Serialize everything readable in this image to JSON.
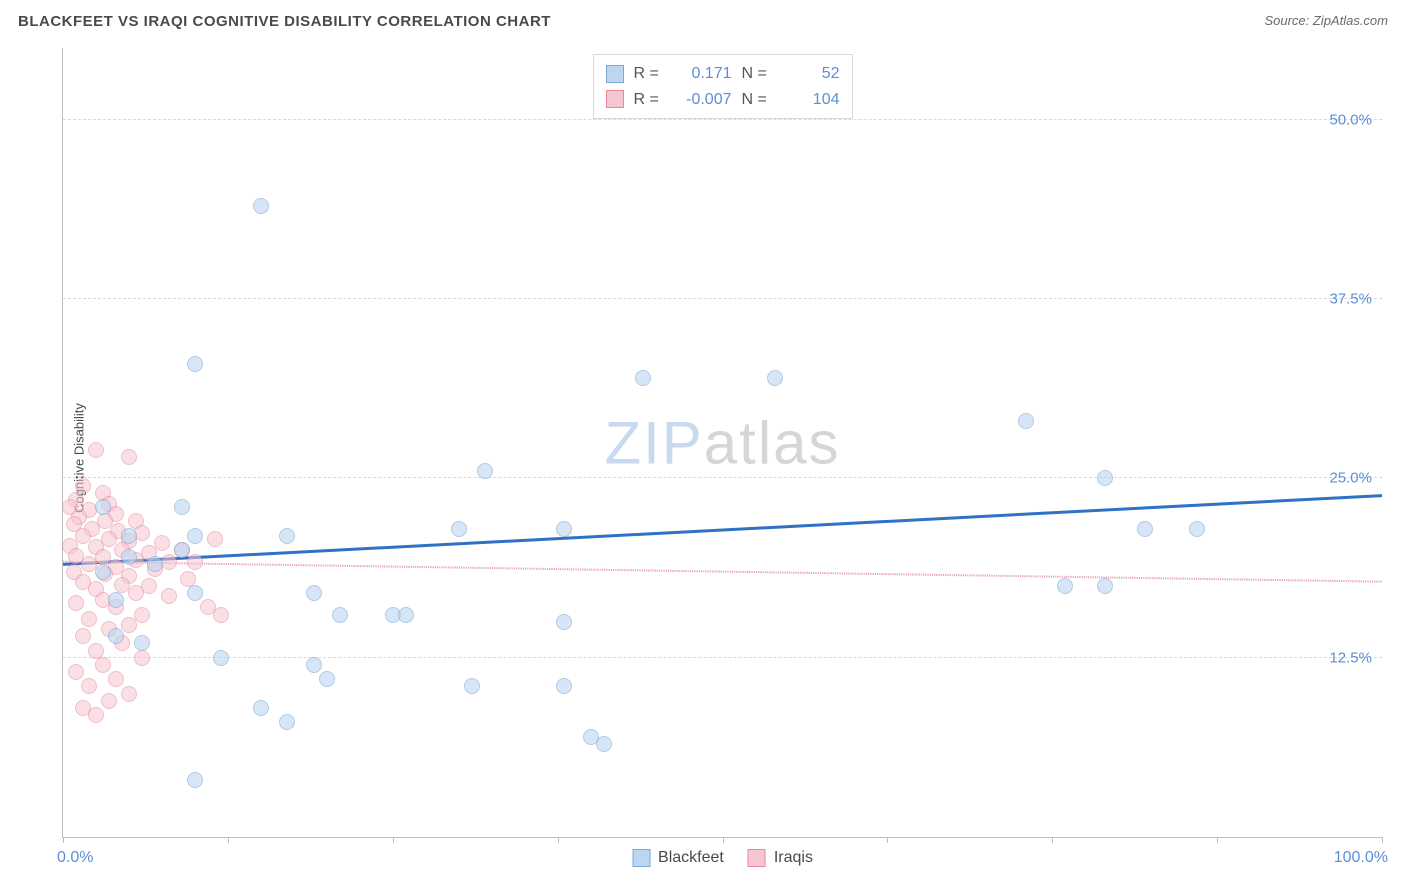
{
  "title": "BLACKFEET VS IRAQI COGNITIVE DISABILITY CORRELATION CHART",
  "source_prefix": "Source: ",
  "source_name": "ZipAtlas.com",
  "y_axis_label": "Cognitive Disability",
  "watermark_zip": "ZIP",
  "watermark_atlas": "atlas",
  "chart": {
    "type": "scatter",
    "xlim": [
      0,
      100
    ],
    "ylim": [
      0,
      55
    ],
    "y_ticks": [
      12.5,
      25.0,
      37.5,
      50.0
    ],
    "y_tick_labels": [
      "12.5%",
      "25.0%",
      "37.5%",
      "50.0%"
    ],
    "x_ticks": [
      0,
      12.5,
      25,
      37.5,
      50,
      62.5,
      75,
      87.5,
      100
    ],
    "x_left_label": "0.0%",
    "x_right_label": "100.0%",
    "grid_color": "#d9d9d9",
    "axis_color": "#bfbfbf",
    "background_color": "#ffffff",
    "marker_radius": 8,
    "marker_stroke_width": 1,
    "tick_label_color": "#5a8fd6",
    "axis_label_color": "#4a4a4a",
    "label_fontsize": 13,
    "tick_fontsize": 15
  },
  "series": [
    {
      "key": "blackfeet",
      "label": "Blackfeet",
      "fill": "#bcd6f2",
      "stroke": "#7fa8d6",
      "fill_opacity": 0.6,
      "R": "0.171",
      "N": "52",
      "trend": {
        "y_at_x0": 19.0,
        "y_at_x100": 23.8,
        "stroke": "#2f72c4",
        "width": 3,
        "dash": "none"
      },
      "points": [
        [
          15,
          44
        ],
        [
          10,
          33
        ],
        [
          44,
          32
        ],
        [
          54,
          32
        ],
        [
          73,
          29
        ],
        [
          32,
          25.5
        ],
        [
          79,
          25
        ],
        [
          38,
          21.5
        ],
        [
          30,
          21.5
        ],
        [
          82,
          21.5
        ],
        [
          86,
          21.5
        ],
        [
          3,
          23
        ],
        [
          9,
          23
        ],
        [
          5,
          21
        ],
        [
          10,
          21
        ],
        [
          17,
          21
        ],
        [
          9,
          20
        ],
        [
          5,
          19.5
        ],
        [
          7,
          19
        ],
        [
          3,
          18.5
        ],
        [
          19,
          17
        ],
        [
          76,
          17.5
        ],
        [
          79,
          17.5
        ],
        [
          10,
          17
        ],
        [
          4,
          16.5
        ],
        [
          21,
          15.5
        ],
        [
          25,
          15.5
        ],
        [
          26,
          15.5
        ],
        [
          38,
          15
        ],
        [
          4,
          14
        ],
        [
          6,
          13.5
        ],
        [
          12,
          12.5
        ],
        [
          19,
          12
        ],
        [
          20,
          11
        ],
        [
          31,
          10.5
        ],
        [
          38,
          10.5
        ],
        [
          15,
          9
        ],
        [
          17,
          8
        ],
        [
          40,
          7
        ],
        [
          41,
          6.5
        ],
        [
          10,
          4
        ]
      ]
    },
    {
      "key": "iraqis",
      "label": "Iraqis",
      "fill": "#f6c5d1",
      "stroke": "#e68aa2",
      "fill_opacity": 0.55,
      "R": "-0.007",
      "N": "104",
      "trend": {
        "y_at_x0": 19.2,
        "y_at_x100": 17.8,
        "stroke": "#e9a3b4",
        "width": 2,
        "dash": "6,5"
      },
      "points": [
        [
          2.5,
          27
        ],
        [
          5,
          26.5
        ],
        [
          1.5,
          24.5
        ],
        [
          3,
          24
        ],
        [
          1,
          23.5
        ],
        [
          3.5,
          23.2
        ],
        [
          0.5,
          23
        ],
        [
          2,
          22.8
        ],
        [
          4,
          22.5
        ],
        [
          1.2,
          22.3
        ],
        [
          3.2,
          22
        ],
        [
          5.5,
          22
        ],
        [
          0.8,
          21.8
        ],
        [
          2.2,
          21.5
        ],
        [
          4.2,
          21.3
        ],
        [
          6,
          21.2
        ],
        [
          1.5,
          21
        ],
        [
          3.5,
          20.8
        ],
        [
          5,
          20.6
        ],
        [
          7.5,
          20.5
        ],
        [
          0.5,
          20.3
        ],
        [
          2.5,
          20.2
        ],
        [
          4.5,
          20
        ],
        [
          9,
          20
        ],
        [
          6.5,
          19.8
        ],
        [
          1,
          19.6
        ],
        [
          3,
          19.5
        ],
        [
          5.5,
          19.3
        ],
        [
          8,
          19.2
        ],
        [
          10,
          19.2
        ],
        [
          11.5,
          20.8
        ],
        [
          2,
          19
        ],
        [
          4,
          18.8
        ],
        [
          7,
          18.7
        ],
        [
          0.8,
          18.5
        ],
        [
          3.2,
          18.3
        ],
        [
          5,
          18.2
        ],
        [
          9.5,
          18
        ],
        [
          1.5,
          17.8
        ],
        [
          4.5,
          17.6
        ],
        [
          6.5,
          17.5
        ],
        [
          2.5,
          17.3
        ],
        [
          5.5,
          17
        ],
        [
          8,
          16.8
        ],
        [
          11,
          16
        ],
        [
          3,
          16.5
        ],
        [
          1,
          16.3
        ],
        [
          4,
          16
        ],
        [
          6,
          15.5
        ],
        [
          2,
          15.2
        ],
        [
          12,
          15.5
        ],
        [
          5,
          14.8
        ],
        [
          3.5,
          14.5
        ],
        [
          1.5,
          14
        ],
        [
          4.5,
          13.5
        ],
        [
          2.5,
          13
        ],
        [
          6,
          12.5
        ],
        [
          3,
          12
        ],
        [
          1,
          11.5
        ],
        [
          4,
          11
        ],
        [
          2,
          10.5
        ],
        [
          5,
          10
        ],
        [
          3.5,
          9.5
        ],
        [
          1.5,
          9
        ],
        [
          2.5,
          8.5
        ]
      ]
    }
  ],
  "legend_top": {
    "R_label": "R =",
    "N_label": "N ="
  },
  "watermark_colors": {
    "zip": "#c9d9ef",
    "atlas": "#d6d6d6"
  }
}
